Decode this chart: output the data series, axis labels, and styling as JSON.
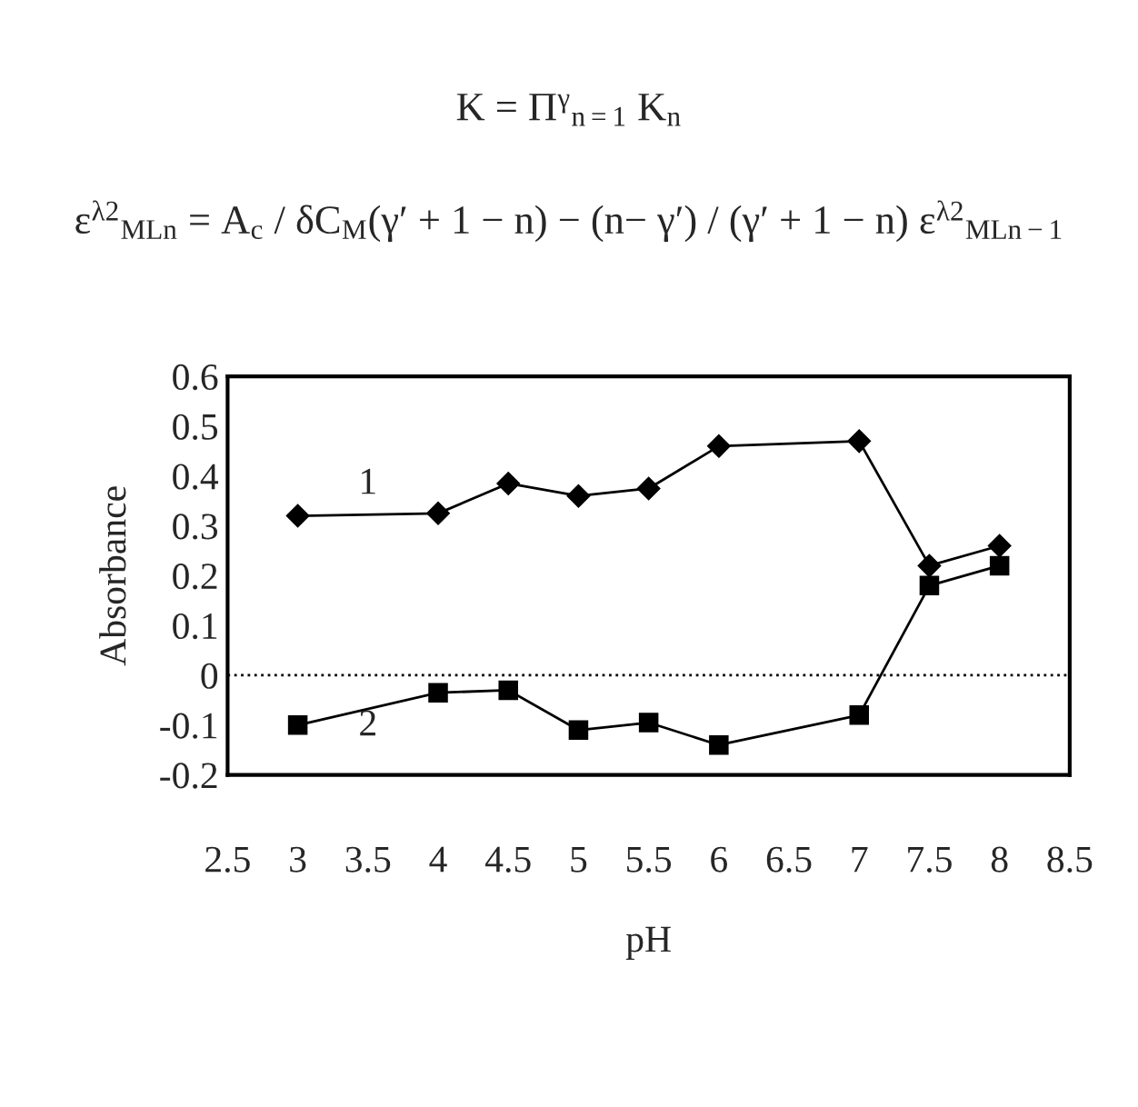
{
  "chart_data": {
    "type": "line",
    "annotations": [
      "K = Π$^{γ}$$_{n=1}$ K$_{n}$",
      "ε$^{λ2}$$_{MLn}$ = A$_{c}$ / δC$_{M}$(γ′ + 1 − n) − (n− γ′) / (γ′ + 1 − n) ε$^{λ2}$$_{MLn−1}$"
    ],
    "xlabel": "pH",
    "ylabel": "Absorbance",
    "x": [
      3,
      4,
      4.5,
      5,
      5.5,
      6,
      7,
      7.5,
      8
    ],
    "series": [
      {
        "name": "1",
        "color": "#000000",
        "marker": "diamond",
        "values": [
          0.32,
          0.325,
          0.385,
          0.36,
          0.375,
          0.46,
          0.47,
          0.22,
          0.26
        ]
      },
      {
        "name": "2",
        "color": "#000000",
        "marker": "square",
        "values": [
          -0.1,
          -0.035,
          -0.03,
          -0.11,
          -0.095,
          -0.14,
          -0.08,
          0.18,
          0.22
        ]
      }
    ],
    "xlim": [
      2.5,
      8.5
    ],
    "xticks": [
      2.5,
      3,
      3.5,
      4,
      4.5,
      5,
      5.5,
      6,
      6.5,
      7,
      7.5,
      8,
      8.5
    ],
    "ylim": [
      -0.2,
      0.6
    ],
    "yticks": [
      -0.2,
      -0.1,
      0,
      0.1,
      0.2,
      0.3,
      0.4,
      0.5,
      0.6
    ],
    "ref_lines": [
      {
        "axis": "y",
        "value": 0,
        "line_style": "dotted",
        "color": "#000000"
      }
    ],
    "grid": false,
    "legend": false,
    "line_style": "solid"
  }
}
